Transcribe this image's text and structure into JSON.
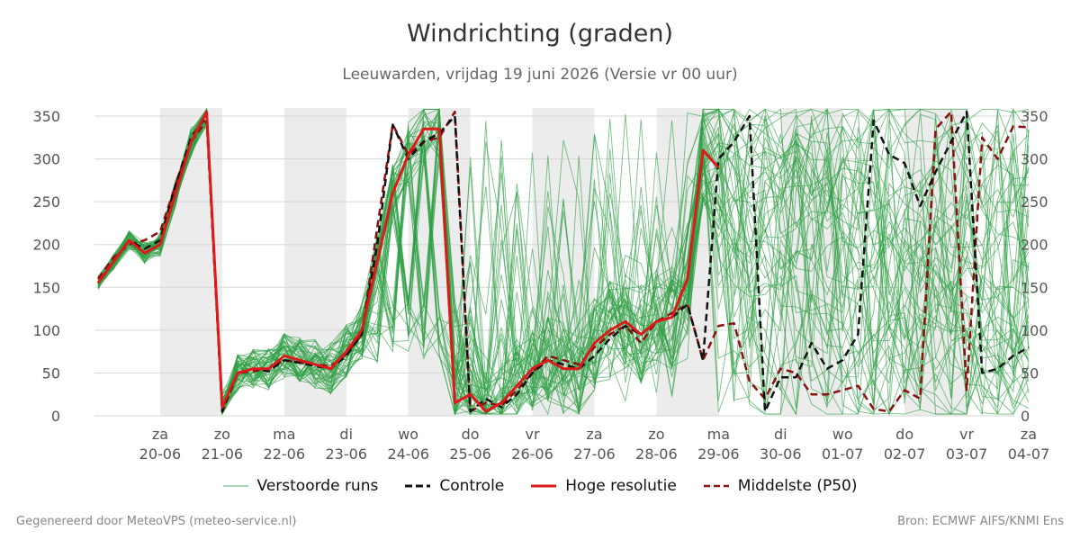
{
  "chart_data": {
    "type": "line",
    "title": "Windrichting (graden)",
    "subtitle": "Leeuwarden, vrijdag 19 juni 2026 (Versie vr 00 uur)",
    "ylim": [
      0,
      360
    ],
    "yticks": [
      0,
      50,
      100,
      150,
      200,
      250,
      300,
      350
    ],
    "y_axis_right": true,
    "xlim": [
      0,
      15
    ],
    "xticks": [
      {
        "x": 1,
        "day": "za",
        "date": "20-06"
      },
      {
        "x": 2,
        "day": "zo",
        "date": "21-06"
      },
      {
        "x": 3,
        "day": "ma",
        "date": "22-06"
      },
      {
        "x": 4,
        "day": "di",
        "date": "23-06"
      },
      {
        "x": 5,
        "day": "wo",
        "date": "24-06"
      },
      {
        "x": 6,
        "day": "do",
        "date": "25-06"
      },
      {
        "x": 7,
        "day": "vr",
        "date": "26-06"
      },
      {
        "x": 8,
        "day": "za",
        "date": "27-06"
      },
      {
        "x": 9,
        "day": "zo",
        "date": "28-06"
      },
      {
        "x": 10,
        "day": "ma",
        "date": "29-06"
      },
      {
        "x": 11,
        "day": "di",
        "date": "30-06"
      },
      {
        "x": 12,
        "day": "wo",
        "date": "01-07"
      },
      {
        "x": 13,
        "day": "do",
        "date": "02-07"
      },
      {
        "x": 14,
        "day": "vr",
        "date": "03-07"
      },
      {
        "x": 15,
        "day": "za",
        "date": "04-07"
      }
    ],
    "weekend_shading": [
      [
        1,
        2
      ],
      [
        3,
        4
      ],
      [
        5,
        6
      ],
      [
        7,
        8
      ],
      [
        9,
        10
      ],
      [
        11,
        12
      ],
      [
        13,
        14
      ]
    ],
    "grid": true,
    "legend_placement": "bottom",
    "series": [
      {
        "name": "Controle",
        "color": "#111111",
        "style": "dashed",
        "x": [
          0,
          0.25,
          0.5,
          0.75,
          1,
          1.25,
          1.5,
          1.75,
          2,
          2.25,
          2.5,
          2.75,
          3,
          3.25,
          3.5,
          3.75,
          4,
          4.25,
          4.5,
          4.75,
          5,
          5.25,
          5.5,
          5.75,
          6,
          6.25,
          6.5,
          6.75,
          7,
          7.25,
          7.5,
          7.75,
          8,
          8.25,
          8.5,
          8.75,
          9,
          9.25,
          9.5,
          9.75,
          10,
          10.25,
          10.5,
          10.75,
          11,
          11.25,
          11.5,
          11.75,
          12,
          12.25,
          12.5,
          12.75,
          13,
          13.25,
          13.5,
          13.75,
          14,
          14.25,
          14.5,
          14.75,
          15
        ],
        "values": [
          155,
          180,
          205,
          195,
          205,
          270,
          325,
          350,
          5,
          50,
          55,
          52,
          65,
          62,
          58,
          55,
          70,
          95,
          200,
          340,
          300,
          320,
          330,
          350,
          5,
          20,
          10,
          25,
          50,
          65,
          60,
          55,
          70,
          90,
          105,
          95,
          110,
          115,
          130,
          65,
          300,
          320,
          350,
          5,
          45,
          45,
          85,
          55,
          65,
          95,
          345,
          305,
          295,
          245,
          285,
          320,
          355,
          50,
          55,
          70,
          80
        ]
      },
      {
        "name": "Hoge resolutie",
        "color": "#dd1a1a",
        "style": "solid",
        "x": [
          0,
          0.25,
          0.5,
          0.75,
          1,
          1.25,
          1.5,
          1.75,
          2,
          2.25,
          2.5,
          2.75,
          3,
          3.25,
          3.5,
          3.75,
          4,
          4.25,
          4.5,
          4.75,
          5,
          5.25,
          5.5,
          5.75,
          6,
          6.25,
          6.5,
          6.75,
          7,
          7.25,
          7.5,
          7.75,
          8,
          8.25,
          8.5,
          8.75,
          9,
          9.25,
          9.5,
          9.75,
          10
        ],
        "values": [
          155,
          180,
          205,
          190,
          200,
          260,
          320,
          355,
          10,
          50,
          55,
          55,
          70,
          65,
          60,
          55,
          75,
          100,
          180,
          260,
          305,
          335,
          335,
          15,
          25,
          5,
          15,
          35,
          55,
          65,
          55,
          55,
          85,
          100,
          110,
          95,
          110,
          115,
          160,
          310,
          290
        ]
      },
      {
        "name": "Middelste (P50)",
        "color": "#8b1010",
        "style": "dashed",
        "x": [
          0,
          0.25,
          0.5,
          0.75,
          1,
          1.25,
          1.5,
          1.75,
          2,
          2.25,
          2.5,
          2.75,
          3,
          3.25,
          3.5,
          3.75,
          4,
          4.25,
          4.5,
          4.75,
          5,
          5.25,
          5.5,
          5.75,
          6,
          6.25,
          6.5,
          6.75,
          7,
          7.25,
          7.5,
          7.75,
          8,
          8.25,
          8.5,
          8.75,
          9,
          9.25,
          9.5,
          9.75,
          10,
          10.25,
          10.5,
          10.75,
          11,
          11.25,
          11.5,
          11.75,
          12,
          12.25,
          12.5,
          12.75,
          13,
          13.25,
          13.5,
          13.75,
          14,
          14.25,
          14.5,
          14.75,
          15
        ],
        "values": [
          160,
          185,
          200,
          205,
          215,
          270,
          320,
          345,
          5,
          50,
          52,
          55,
          65,
          62,
          60,
          58,
          72,
          95,
          220,
          340,
          305,
          320,
          325,
          355,
          5,
          15,
          12,
          30,
          50,
          70,
          65,
          60,
          80,
          95,
          105,
          85,
          110,
          120,
          130,
          65,
          105,
          108,
          40,
          20,
          55,
          50,
          25,
          25,
          30,
          35,
          8,
          5,
          30,
          20,
          335,
          355,
          30,
          325,
          300,
          338,
          337
        ]
      }
    ],
    "perturbed_runs": {
      "name": "Verstoorde runs",
      "color": "#2e9e44",
      "count": 50
    }
  },
  "legend": {
    "perturbed": "Verstoorde runs",
    "control": "Controle",
    "hires": "Hoge resolutie",
    "median": "Middelste (P50)"
  },
  "footer": {
    "left": "Gegenereerd door MeteoVPS (meteo-service.nl)",
    "right": "Bron: ECMWF AIFS/KNMI Ens"
  }
}
